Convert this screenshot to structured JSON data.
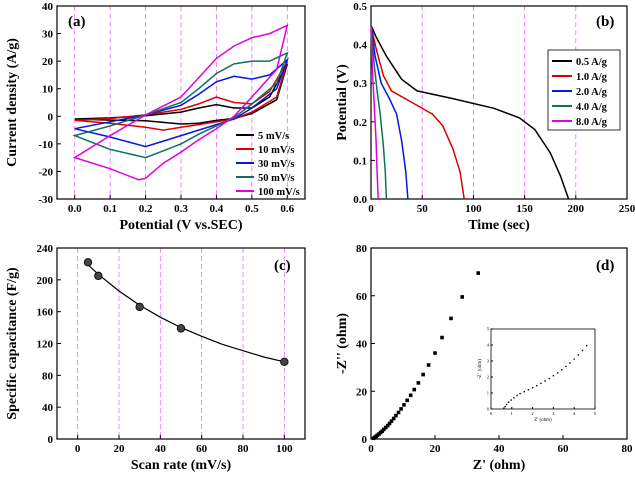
{
  "chart_data": [
    {
      "panel": "(a)",
      "type": "line",
      "xlabel": "Potential (V vs.SEC)",
      "ylabel": "Current density (A/g)",
      "xlim": [
        -0.05,
        0.65
      ],
      "ylim": [
        -30,
        40
      ],
      "xticks": [
        "0.0",
        "0.1",
        "0.2",
        "0.3",
        "0.4",
        "0.5",
        "0.6"
      ],
      "yticks": [
        "-30",
        "-20",
        "-10",
        "0",
        "10",
        "20",
        "30",
        "40"
      ],
      "grid": true,
      "legend_position": "right",
      "series": [
        {
          "name": "5 mV/s",
          "color": "#000000",
          "anodic": [
            [
              0.0,
              -1.0
            ],
            [
              0.1,
              -0.6
            ],
            [
              0.2,
              0.2
            ],
            [
              0.3,
              1.5
            ],
            [
              0.35,
              3.0
            ],
            [
              0.4,
              4.2
            ],
            [
              0.45,
              3.0
            ],
            [
              0.5,
              3.0
            ],
            [
              0.55,
              7.0
            ],
            [
              0.6,
              19.0
            ]
          ],
          "cathodic": [
            [
              0.6,
              19.0
            ],
            [
              0.57,
              6.0
            ],
            [
              0.5,
              1.0
            ],
            [
              0.45,
              -0.8
            ],
            [
              0.4,
              -1.5
            ],
            [
              0.35,
              -2.5
            ],
            [
              0.3,
              -2.8
            ],
            [
              0.25,
              -2.2
            ],
            [
              0.2,
              -1.6
            ],
            [
              0.1,
              -1.4
            ],
            [
              0.0,
              -1.0
            ]
          ]
        },
        {
          "name": "10 mV/s",
          "color": "#e00000",
          "anodic": [
            [
              0.0,
              -1.5
            ],
            [
              0.1,
              -0.8
            ],
            [
              0.2,
              0.5
            ],
            [
              0.3,
              2.5
            ],
            [
              0.35,
              4.5
            ],
            [
              0.4,
              7.0
            ],
            [
              0.45,
              5.0
            ],
            [
              0.5,
              4.5
            ],
            [
              0.55,
              9.0
            ],
            [
              0.6,
              20.0
            ]
          ],
          "cathodic": [
            [
              0.6,
              20.0
            ],
            [
              0.57,
              7.0
            ],
            [
              0.5,
              1.5
            ],
            [
              0.45,
              -1.0
            ],
            [
              0.4,
              -2.0
            ],
            [
              0.35,
              -3.0
            ],
            [
              0.3,
              -4.0
            ],
            [
              0.25,
              -5.0
            ],
            [
              0.2,
              -4.0
            ],
            [
              0.1,
              -2.5
            ],
            [
              0.0,
              -1.5
            ]
          ]
        },
        {
          "name": "30 mV/s",
          "color": "#0018e0",
          "anodic": [
            [
              0.0,
              -4.5
            ],
            [
              0.1,
              -2.0
            ],
            [
              0.2,
              0.5
            ],
            [
              0.3,
              4.0
            ],
            [
              0.35,
              8.0
            ],
            [
              0.4,
              12.5
            ],
            [
              0.45,
              14.5
            ],
            [
              0.5,
              13.5
            ],
            [
              0.55,
              15.0
            ],
            [
              0.6,
              20.5
            ]
          ],
          "cathodic": [
            [
              0.6,
              20.5
            ],
            [
              0.57,
              10.0
            ],
            [
              0.5,
              3.0
            ],
            [
              0.45,
              -1.0
            ],
            [
              0.4,
              -3.0
            ],
            [
              0.35,
              -5.0
            ],
            [
              0.3,
              -7.0
            ],
            [
              0.25,
              -9.0
            ],
            [
              0.2,
              -11.0
            ],
            [
              0.1,
              -7.5
            ],
            [
              0.0,
              -4.5
            ]
          ]
        },
        {
          "name": "50 mV/s",
          "color": "#107060",
          "anodic": [
            [
              0.0,
              -7.0
            ],
            [
              0.1,
              -3.5
            ],
            [
              0.2,
              0.5
            ],
            [
              0.3,
              5.0
            ],
            [
              0.35,
              10.0
            ],
            [
              0.4,
              15.5
            ],
            [
              0.45,
              19.0
            ],
            [
              0.5,
              20.0
            ],
            [
              0.55,
              20.0
            ],
            [
              0.6,
              23.0
            ]
          ],
          "cathodic": [
            [
              0.6,
              23.0
            ],
            [
              0.57,
              12.0
            ],
            [
              0.5,
              4.5
            ],
            [
              0.45,
              -0.5
            ],
            [
              0.4,
              -3.5
            ],
            [
              0.35,
              -6.5
            ],
            [
              0.3,
              -10.0
            ],
            [
              0.25,
              -12.5
            ],
            [
              0.2,
              -15.0
            ],
            [
              0.1,
              -12.0
            ],
            [
              0.0,
              -7.0
            ]
          ]
        },
        {
          "name": "100 mV/s",
          "color": "#e000e0",
          "anodic": [
            [
              0.0,
              -15.0
            ],
            [
              0.1,
              -7.0
            ],
            [
              0.2,
              0.5
            ],
            [
              0.3,
              7.0
            ],
            [
              0.35,
              14.0
            ],
            [
              0.4,
              21.0
            ],
            [
              0.45,
              25.5
            ],
            [
              0.5,
              28.5
            ],
            [
              0.55,
              30.0
            ],
            [
              0.6,
              33.0
            ]
          ],
          "cathodic": [
            [
              0.6,
              33.0
            ],
            [
              0.57,
              17.0
            ],
            [
              0.5,
              7.0
            ],
            [
              0.45,
              0.0
            ],
            [
              0.4,
              -4.5
            ],
            [
              0.35,
              -8.5
            ],
            [
              0.3,
              -13.0
            ],
            [
              0.25,
              -17.0
            ],
            [
              0.2,
              -22.5
            ],
            [
              0.18,
              -23.0
            ],
            [
              0.1,
              -19.0
            ],
            [
              0.0,
              -15.0
            ]
          ]
        }
      ]
    },
    {
      "panel": "(b)",
      "type": "line",
      "xlabel": "Time (sec)",
      "ylabel": "Potential (V)",
      "xlim": [
        0,
        250
      ],
      "ylim": [
        0.0,
        0.5
      ],
      "xticks": [
        "0",
        "50",
        "100",
        "150",
        "200",
        "250"
      ],
      "yticks": [
        "0.0",
        "0.1",
        "0.2",
        "0.3",
        "0.4",
        "0.5"
      ],
      "grid": true,
      "legend_position": "top-right",
      "series": [
        {
          "name": "0.5 A/g",
          "color": "#000000",
          "points": [
            [
              0,
              0.45
            ],
            [
              5,
              0.42
            ],
            [
              15,
              0.37
            ],
            [
              30,
              0.31
            ],
            [
              45,
              0.28
            ],
            [
              80,
              0.26
            ],
            [
              120,
              0.235
            ],
            [
              145,
              0.21
            ],
            [
              160,
              0.18
            ],
            [
              175,
              0.12
            ],
            [
              185,
              0.06
            ],
            [
              193,
              0.0
            ]
          ]
        },
        {
          "name": "1.0 A/g",
          "color": "#e00000",
          "points": [
            [
              0,
              0.45
            ],
            [
              5,
              0.39
            ],
            [
              12,
              0.32
            ],
            [
              20,
              0.28
            ],
            [
              40,
              0.25
            ],
            [
              60,
              0.22
            ],
            [
              70,
              0.19
            ],
            [
              80,
              0.13
            ],
            [
              87,
              0.07
            ],
            [
              91,
              0.0
            ]
          ]
        },
        {
          "name": "2.0 A/g",
          "color": "#0018e0",
          "points": [
            [
              0,
              0.45
            ],
            [
              4,
              0.37
            ],
            [
              10,
              0.3
            ],
            [
              18,
              0.26
            ],
            [
              25,
              0.22
            ],
            [
              30,
              0.15
            ],
            [
              34,
              0.07
            ],
            [
              36,
              0.0
            ]
          ]
        },
        {
          "name": "4.0 A/g",
          "color": "#107060",
          "points": [
            [
              0,
              0.45
            ],
            [
              3,
              0.35
            ],
            [
              6,
              0.28
            ],
            [
              9,
              0.22
            ],
            [
              12,
              0.14
            ],
            [
              14,
              0.07
            ],
            [
              15,
              0.0
            ]
          ]
        },
        {
          "name": "8.0 A/g",
          "color": "#e000e0",
          "points": [
            [
              0,
              0.45
            ],
            [
              1.5,
              0.33
            ],
            [
              3,
              0.25
            ],
            [
              5,
              0.15
            ],
            [
              6,
              0.07
            ],
            [
              7,
              0.0
            ]
          ]
        }
      ]
    },
    {
      "panel": "(c)",
      "type": "scatter",
      "xlabel": "Scan rate (mV/s)",
      "ylabel": "Specific capacitance (F/g)",
      "xlim": [
        -10,
        110
      ],
      "ylim": [
        0,
        240
      ],
      "xticks": [
        "0",
        "20",
        "40",
        "60",
        "80",
        "100"
      ],
      "yticks": [
        "0",
        "40",
        "80",
        "120",
        "160",
        "200",
        "240"
      ],
      "grid": true,
      "x": [
        5,
        10,
        30,
        50,
        100
      ],
      "values": [
        222,
        205,
        166,
        139,
        97
      ],
      "fit_curve": [
        [
          5,
          219
        ],
        [
          10,
          207
        ],
        [
          20,
          186
        ],
        [
          30,
          168
        ],
        [
          40,
          153
        ],
        [
          50,
          140
        ],
        [
          60,
          129
        ],
        [
          70,
          119
        ],
        [
          80,
          111
        ],
        [
          90,
          103
        ],
        [
          100,
          97
        ]
      ]
    },
    {
      "panel": "(d)",
      "type": "scatter",
      "xlabel": "Z' (ohm)",
      "ylabel": "-Z'' (ohm)",
      "xlim": [
        0,
        80
      ],
      "ylim": [
        0,
        80
      ],
      "xticks": [
        "0",
        "20",
        "40",
        "60",
        "80"
      ],
      "yticks": [
        "0",
        "20",
        "40",
        "60",
        "80"
      ],
      "grid": false,
      "x": [
        0.8,
        1.2,
        1.6,
        2.0,
        2.5,
        3.0,
        3.5,
        4.0,
        4.6,
        5.2,
        5.8,
        6.4,
        7.1,
        7.8,
        8.6,
        9.4,
        10.3,
        11.3,
        12.4,
        13.5,
        14.8,
        16.3,
        18.0,
        20.0,
        22.2,
        25.0,
        28.5,
        33.5
      ],
      "values": [
        0.3,
        0.7,
        1.1,
        1.6,
        2.1,
        2.7,
        3.3,
        4.0,
        4.8,
        5.6,
        6.5,
        7.5,
        8.6,
        9.8,
        11.1,
        12.6,
        14.3,
        16.2,
        18.3,
        20.7,
        23.5,
        27.0,
        31.0,
        36.0,
        42.5,
        50.5,
        59.5,
        69.5
      ],
      "inset": {
        "xlabel": "Z' (ohm)",
        "ylabel": "-Z'' (ohm)",
        "xlim": [
          0,
          5
        ],
        "ylim": [
          0,
          5
        ],
        "xticks": [
          "0",
          "1",
          "2",
          "3",
          "4",
          "5"
        ],
        "yticks": [
          "0",
          "1",
          "2",
          "3",
          "4",
          "5"
        ],
        "x": [
          0.62,
          0.68,
          0.75,
          0.85,
          0.97,
          1.1,
          1.25,
          1.4,
          1.6,
          1.8,
          2.0,
          2.2,
          2.4,
          2.6,
          2.8,
          3.0,
          3.2,
          3.4,
          3.6,
          3.8,
          4.0,
          4.2,
          4.4,
          4.6
        ],
        "values": [
          0.05,
          0.15,
          0.28,
          0.42,
          0.56,
          0.7,
          0.84,
          0.96,
          1.08,
          1.2,
          1.33,
          1.46,
          1.6,
          1.75,
          1.91,
          2.08,
          2.26,
          2.45,
          2.66,
          2.88,
          3.12,
          3.38,
          3.66,
          3.96
        ]
      }
    }
  ]
}
